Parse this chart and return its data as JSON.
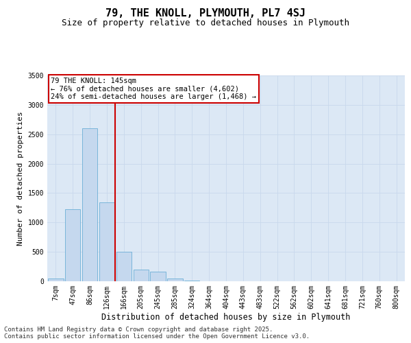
{
  "title": "79, THE KNOLL, PLYMOUTH, PL7 4SJ",
  "subtitle": "Size of property relative to detached houses in Plymouth",
  "xlabel": "Distribution of detached houses by size in Plymouth",
  "ylabel": "Number of detached properties",
  "categories": [
    "7sqm",
    "47sqm",
    "86sqm",
    "126sqm",
    "166sqm",
    "205sqm",
    "245sqm",
    "285sqm",
    "324sqm",
    "364sqm",
    "404sqm",
    "443sqm",
    "483sqm",
    "522sqm",
    "562sqm",
    "602sqm",
    "641sqm",
    "681sqm",
    "721sqm",
    "760sqm",
    "800sqm"
  ],
  "values": [
    50,
    1230,
    2600,
    1340,
    500,
    200,
    160,
    50,
    10,
    0,
    0,
    0,
    0,
    0,
    0,
    0,
    0,
    0,
    0,
    0,
    0
  ],
  "bar_color": "#c5d8ee",
  "bar_edge_color": "#6baed6",
  "vline_x_index": 3.5,
  "vline_color": "#cc0000",
  "annotation_text": "79 THE KNOLL: 145sqm\n← 76% of detached houses are smaller (4,602)\n24% of semi-detached houses are larger (1,468) →",
  "annotation_box_color": "#cc0000",
  "ylim": [
    0,
    3500
  ],
  "yticks": [
    0,
    500,
    1000,
    1500,
    2000,
    2500,
    3000,
    3500
  ],
  "grid_color": "#c8d8ec",
  "background_color": "#dce8f5",
  "footer_line1": "Contains HM Land Registry data © Crown copyright and database right 2025.",
  "footer_line2": "Contains public sector information licensed under the Open Government Licence v3.0.",
  "title_fontsize": 11,
  "subtitle_fontsize": 9,
  "xlabel_fontsize": 8.5,
  "ylabel_fontsize": 8,
  "tick_fontsize": 7,
  "annotation_fontsize": 7.5,
  "footer_fontsize": 6.5
}
